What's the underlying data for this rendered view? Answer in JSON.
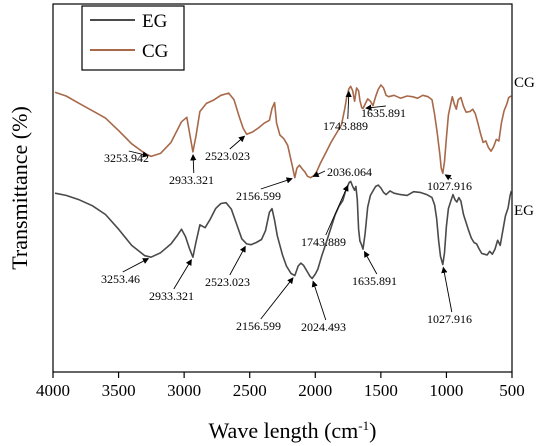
{
  "chart_data": {
    "type": "line",
    "title": "",
    "xlabel": "Wave length (cm",
    "xlabel_sup": "-1",
    "xlabel_end": ")",
    "ylabel": "Transmittance (%)",
    "xlim": [
      4000,
      500
    ],
    "x_reversed": true,
    "xticks": [
      4000,
      3500,
      3000,
      2500,
      2000,
      1500,
      1000,
      500
    ],
    "grid": false,
    "legend_position": "top-left",
    "series": [
      {
        "name": "CG",
        "color": "#a8694a",
        "points": [
          [
            3985,
            12.0
          ],
          [
            3900,
            12.5
          ],
          [
            3800,
            13.5
          ],
          [
            3700,
            14.5
          ],
          [
            3600,
            15.5
          ],
          [
            3500,
            17.2
          ],
          [
            3400,
            19.0
          ],
          [
            3300,
            20.3
          ],
          [
            3253,
            20.7
          ],
          [
            3180,
            20.3
          ],
          [
            3100,
            18.8
          ],
          [
            3020,
            16.0
          ],
          [
            2980,
            15.4
          ],
          [
            2950,
            18.4
          ],
          [
            2933,
            20.1
          ],
          [
            2910,
            18.0
          ],
          [
            2880,
            14.6
          ],
          [
            2830,
            13.5
          ],
          [
            2780,
            13.1
          ],
          [
            2720,
            12.4
          ],
          [
            2660,
            12.1
          ],
          [
            2620,
            13.0
          ],
          [
            2580,
            15.3
          ],
          [
            2550,
            16.9
          ],
          [
            2523,
            17.7
          ],
          [
            2480,
            17.4
          ],
          [
            2430,
            16.8
          ],
          [
            2390,
            16.2
          ],
          [
            2350,
            15.8
          ],
          [
            2330,
            14.2
          ],
          [
            2310,
            13.4
          ],
          [
            2295,
            16.2
          ],
          [
            2270,
            17.8
          ],
          [
            2240,
            18.3
          ],
          [
            2210,
            19.2
          ],
          [
            2175,
            22.0
          ],
          [
            2156,
            23.6
          ],
          [
            2140,
            22.3
          ],
          [
            2120,
            21.9
          ],
          [
            2100,
            22.4
          ],
          [
            2080,
            22.8
          ],
          [
            2060,
            23.4
          ],
          [
            2036,
            23.6
          ],
          [
            2010,
            23.3
          ],
          [
            1990,
            22.8
          ],
          [
            1960,
            21.6
          ],
          [
            1920,
            20.2
          ],
          [
            1880,
            18.8
          ],
          [
            1840,
            17.6
          ],
          [
            1800,
            16.4
          ],
          [
            1775,
            14.2
          ],
          [
            1760,
            12.6
          ],
          [
            1743,
            11.5
          ],
          [
            1730,
            11.2
          ],
          [
            1715,
            11.8
          ],
          [
            1700,
            13.2
          ],
          [
            1685,
            11.4
          ],
          [
            1670,
            11.8
          ],
          [
            1660,
            13.1
          ],
          [
            1645,
            14.1
          ],
          [
            1636,
            14.2
          ],
          [
            1620,
            13.6
          ],
          [
            1600,
            12.9
          ],
          [
            1580,
            13.2
          ],
          [
            1560,
            13.8
          ],
          [
            1540,
            12.6
          ],
          [
            1520,
            11.6
          ],
          [
            1500,
            11.0
          ],
          [
            1480,
            11.4
          ],
          [
            1460,
            12.4
          ],
          [
            1440,
            12.6
          ],
          [
            1400,
            12.4
          ],
          [
            1350,
            12.8
          ],
          [
            1300,
            12.5
          ],
          [
            1260,
            12.6
          ],
          [
            1220,
            12.8
          ],
          [
            1180,
            12.4
          ],
          [
            1140,
            12.6
          ],
          [
            1110,
            13.0
          ],
          [
            1090,
            15.0
          ],
          [
            1070,
            17.5
          ],
          [
            1050,
            20.5
          ],
          [
            1040,
            22.3
          ],
          [
            1028,
            23.0
          ],
          [
            1015,
            21.4
          ],
          [
            1000,
            18.2
          ],
          [
            985,
            15.1
          ],
          [
            970,
            13.8
          ],
          [
            955,
            12.6
          ],
          [
            940,
            13.6
          ],
          [
            925,
            14.3
          ],
          [
            910,
            13.0
          ],
          [
            890,
            12.7
          ],
          [
            870,
            13.9
          ],
          [
            850,
            14.7
          ],
          [
            820,
            14.6
          ],
          [
            800,
            14.3
          ],
          [
            780,
            14.9
          ],
          [
            760,
            16.2
          ],
          [
            740,
            17.6
          ],
          [
            720,
            18.8
          ],
          [
            700,
            18.6
          ],
          [
            680,
            19.5
          ],
          [
            660,
            20.0
          ],
          [
            640,
            19.4
          ],
          [
            620,
            18.4
          ],
          [
            600,
            18.6
          ],
          [
            580,
            16.1
          ],
          [
            560,
            14.5
          ],
          [
            540,
            13.6
          ],
          [
            525,
            12.7
          ],
          [
            515,
            12.6
          ],
          [
            505,
            12.5
          ]
        ]
      },
      {
        "name": "EG",
        "color": "#4a4a4a",
        "points": [
          [
            3985,
            25.7
          ],
          [
            3900,
            26.0
          ],
          [
            3800,
            26.6
          ],
          [
            3700,
            27.4
          ],
          [
            3600,
            28.6
          ],
          [
            3500,
            30.6
          ],
          [
            3400,
            32.8
          ],
          [
            3300,
            34.2
          ],
          [
            3253,
            34.4
          ],
          [
            3180,
            33.8
          ],
          [
            3100,
            32.6
          ],
          [
            3050,
            31.4
          ],
          [
            3020,
            30.6
          ],
          [
            2990,
            31.6
          ],
          [
            2960,
            33.2
          ],
          [
            2933,
            34.4
          ],
          [
            2910,
            32.4
          ],
          [
            2880,
            30.0
          ],
          [
            2840,
            30.4
          ],
          [
            2800,
            29.2
          ],
          [
            2760,
            27.8
          ],
          [
            2720,
            27.1
          ],
          [
            2680,
            27.0
          ],
          [
            2640,
            27.9
          ],
          [
            2600,
            29.9
          ],
          [
            2560,
            31.9
          ],
          [
            2523,
            32.6
          ],
          [
            2490,
            32.7
          ],
          [
            2450,
            32.4
          ],
          [
            2410,
            32.0
          ],
          [
            2380,
            30.8
          ],
          [
            2350,
            28.3
          ],
          [
            2330,
            27.8
          ],
          [
            2310,
            29.4
          ],
          [
            2290,
            31.5
          ],
          [
            2250,
            34.1
          ],
          [
            2220,
            35.6
          ],
          [
            2185,
            36.6
          ],
          [
            2156,
            36.9
          ],
          [
            2130,
            35.6
          ],
          [
            2110,
            35.2
          ],
          [
            2090,
            35.5
          ],
          [
            2060,
            36.4
          ],
          [
            2040,
            37.0
          ],
          [
            2024,
            37.3
          ],
          [
            2000,
            36.7
          ],
          [
            1980,
            36.0
          ],
          [
            1950,
            34.2
          ],
          [
            1920,
            32.6
          ],
          [
            1880,
            30.4
          ],
          [
            1850,
            28.7
          ],
          [
            1820,
            27.5
          ],
          [
            1790,
            26.7
          ],
          [
            1770,
            25.5
          ],
          [
            1750,
            24.6
          ],
          [
            1743,
            24.3
          ],
          [
            1730,
            24.1
          ],
          [
            1715,
            24.8
          ],
          [
            1700,
            25.3
          ],
          [
            1690,
            24.8
          ],
          [
            1680,
            26.6
          ],
          [
            1670,
            30.6
          ],
          [
            1660,
            32.2
          ],
          [
            1650,
            32.6
          ],
          [
            1636,
            33.3
          ],
          [
            1620,
            31.2
          ],
          [
            1600,
            27.6
          ],
          [
            1580,
            26.0
          ],
          [
            1560,
            25.4
          ],
          [
            1540,
            24.8
          ],
          [
            1520,
            24.6
          ],
          [
            1500,
            25.0
          ],
          [
            1480,
            25.6
          ],
          [
            1460,
            25.9
          ],
          [
            1430,
            25.4
          ],
          [
            1400,
            25.7
          ],
          [
            1350,
            25.9
          ],
          [
            1300,
            26.0
          ],
          [
            1250,
            25.5
          ],
          [
            1200,
            25.6
          ],
          [
            1150,
            25.9
          ],
          [
            1110,
            26.3
          ],
          [
            1090,
            27.3
          ],
          [
            1075,
            29.1
          ],
          [
            1060,
            32.1
          ],
          [
            1045,
            34.3
          ],
          [
            1028,
            35.4
          ],
          [
            1015,
            33.8
          ],
          [
            1000,
            30.2
          ],
          [
            985,
            27.8
          ],
          [
            965,
            26.7
          ],
          [
            950,
            25.9
          ],
          [
            935,
            26.6
          ],
          [
            920,
            26.9
          ],
          [
            905,
            26.3
          ],
          [
            890,
            26.8
          ],
          [
            870,
            28.6
          ],
          [
            850,
            29.7
          ],
          [
            830,
            30.8
          ],
          [
            810,
            31.8
          ],
          [
            790,
            32.4
          ],
          [
            770,
            32.6
          ],
          [
            750,
            33.3
          ],
          [
            730,
            33.9
          ],
          [
            710,
            34.0
          ],
          [
            690,
            34.1
          ],
          [
            670,
            33.6
          ],
          [
            650,
            34.0
          ],
          [
            630,
            33.3
          ],
          [
            610,
            32.1
          ],
          [
            590,
            32.8
          ],
          [
            570,
            30.8
          ],
          [
            550,
            28.8
          ],
          [
            530,
            27.7
          ],
          [
            515,
            26.1
          ],
          [
            505,
            25.4
          ]
        ]
      }
    ],
    "annotations": [
      {
        "label": "3253.942",
        "series": "CG",
        "x": 3253
      },
      {
        "label": "2933.321",
        "series": "CG",
        "x": 2933
      },
      {
        "label": "2523.023",
        "series": "CG",
        "x": 2523
      },
      {
        "label": "2156.599",
        "series": "CG",
        "x": 2156
      },
      {
        "label": "2036.064",
        "series": "CG",
        "x": 2036
      },
      {
        "label": "1743.889",
        "series": "CG",
        "x": 1743
      },
      {
        "label": "1635.891",
        "series": "CG",
        "x": 1636
      },
      {
        "label": "1027.916",
        "series": "CG",
        "x": 1028
      },
      {
        "label": "3253.46",
        "series": "EG",
        "x": 3253
      },
      {
        "label": "2933.321",
        "series": "EG",
        "x": 2933
      },
      {
        "label": "2523.023",
        "series": "EG",
        "x": 2523
      },
      {
        "label": "2156.599",
        "series": "EG",
        "x": 2156
      },
      {
        "label": "2024.493",
        "series": "EG",
        "x": 2024
      },
      {
        "label": "1743.889",
        "series": "EG",
        "x": 1743
      },
      {
        "label": "1635.891",
        "series": "EG",
        "x": 1636
      },
      {
        "label": "1027.916",
        "series": "EG",
        "x": 1028
      }
    ],
    "series_tags": [
      "CG",
      "EG"
    ]
  }
}
